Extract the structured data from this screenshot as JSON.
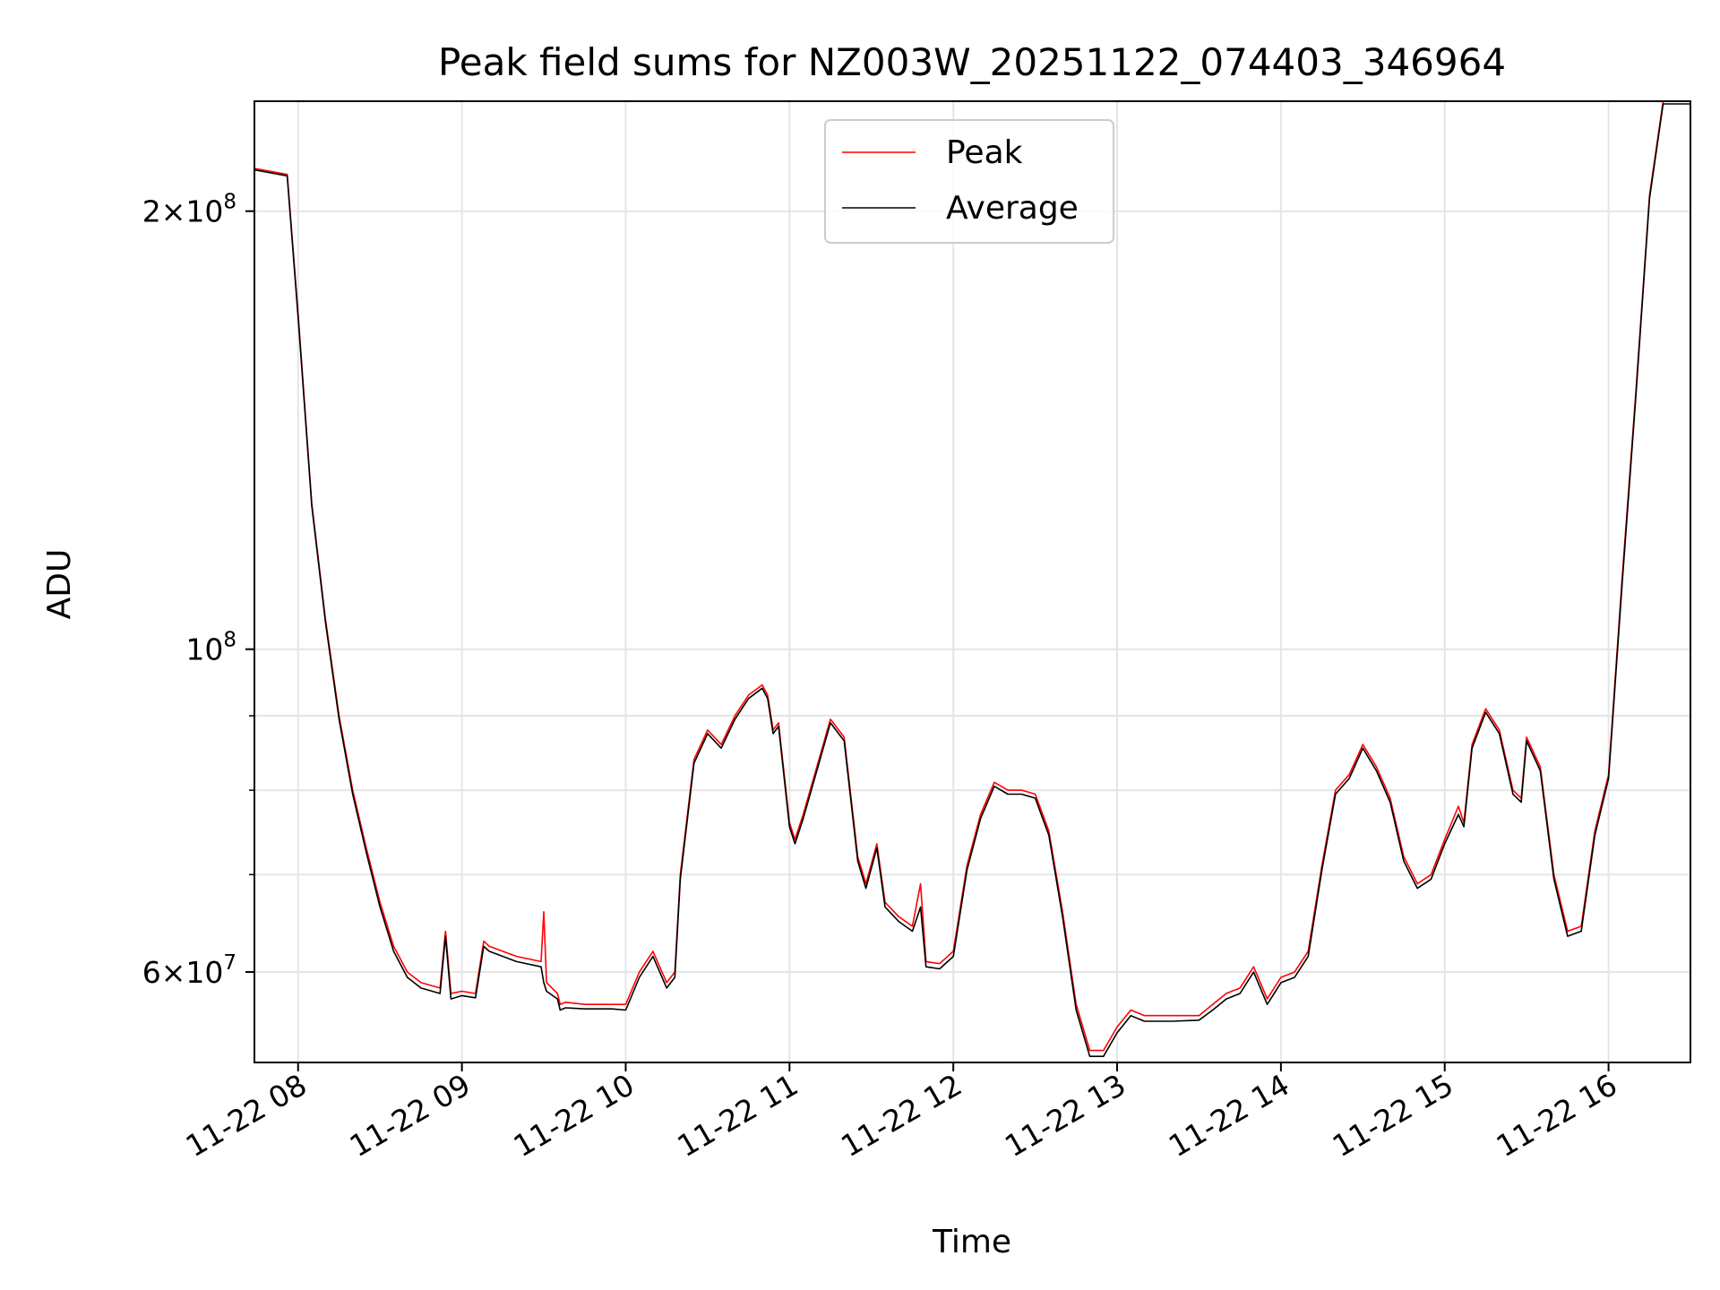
{
  "chart_data": {
    "type": "line",
    "title": "Peak field sums for NZ003W_20251122_074403_346964",
    "xlabel": "Time",
    "ylabel": "ADU",
    "y_scale": "log",
    "grid": true,
    "legend_position": "top-center",
    "xlim": [
      "2025-11-22 07:44",
      "2025-11-22 16:30"
    ],
    "ylim": [
      52000000,
      238000000
    ],
    "x_ticks": [
      {
        "value": "2025-11-22 08:00",
        "label": "11-22 08"
      },
      {
        "value": "2025-11-22 09:00",
        "label": "11-22 09"
      },
      {
        "value": "2025-11-22 10:00",
        "label": "11-22 10"
      },
      {
        "value": "2025-11-22 11:00",
        "label": "11-22 11"
      },
      {
        "value": "2025-11-22 12:00",
        "label": "11-22 12"
      },
      {
        "value": "2025-11-22 13:00",
        "label": "11-22 13"
      },
      {
        "value": "2025-11-22 14:00",
        "label": "11-22 14"
      },
      {
        "value": "2025-11-22 15:00",
        "label": "11-22 15"
      },
      {
        "value": "2025-11-22 16:00",
        "label": "11-22 16"
      }
    ],
    "y_ticks": [
      {
        "value": 60000000,
        "base": "6",
        "exp": "7"
      },
      {
        "value": 100000000,
        "base": "",
        "exp": "8"
      },
      {
        "value": 200000000,
        "base": "2",
        "exp": "8"
      }
    ],
    "y_minor_ticks": [
      70000000,
      80000000,
      90000000
    ],
    "series": [
      {
        "name": "Peak",
        "color": "#ff0000",
        "x": [
          "2025-11-22 07:44",
          "2025-11-22 07:56",
          "2025-11-22 08:00",
          "2025-11-22 08:05",
          "2025-11-22 08:10",
          "2025-11-22 08:15",
          "2025-11-22 08:20",
          "2025-11-22 08:25",
          "2025-11-22 08:30",
          "2025-11-22 08:35",
          "2025-11-22 08:40",
          "2025-11-22 08:45",
          "2025-11-22 08:52",
          "2025-11-22 08:54",
          "2025-11-22 08:56",
          "2025-11-22 09:00",
          "2025-11-22 09:05",
          "2025-11-22 09:08",
          "2025-11-22 09:10",
          "2025-11-22 09:20",
          "2025-11-22 09:29",
          "2025-11-22 09:30",
          "2025-11-22 09:31",
          "2025-11-22 09:35",
          "2025-11-22 09:36",
          "2025-11-22 09:38",
          "2025-11-22 09:45",
          "2025-11-22 09:55",
          "2025-11-22 10:00",
          "2025-11-22 10:05",
          "2025-11-22 10:10",
          "2025-11-22 10:15",
          "2025-11-22 10:18",
          "2025-11-22 10:20",
          "2025-11-22 10:25",
          "2025-11-22 10:30",
          "2025-11-22 10:35",
          "2025-11-22 10:40",
          "2025-11-22 10:45",
          "2025-11-22 10:50",
          "2025-11-22 10:52",
          "2025-11-22 10:54",
          "2025-11-22 10:56",
          "2025-11-22 11:00",
          "2025-11-22 11:02",
          "2025-11-22 11:05",
          "2025-11-22 11:10",
          "2025-11-22 11:15",
          "2025-11-22 11:20",
          "2025-11-22 11:25",
          "2025-11-22 11:28",
          "2025-11-22 11:32",
          "2025-11-22 11:35",
          "2025-11-22 11:40",
          "2025-11-22 11:45",
          "2025-11-22 11:48",
          "2025-11-22 11:50",
          "2025-11-22 11:55",
          "2025-11-22 12:00",
          "2025-11-22 12:05",
          "2025-11-22 12:10",
          "2025-11-22 12:15",
          "2025-11-22 12:20",
          "2025-11-22 12:25",
          "2025-11-22 12:30",
          "2025-11-22 12:35",
          "2025-11-22 12:40",
          "2025-11-22 12:45",
          "2025-11-22 12:50",
          "2025-11-22 12:55",
          "2025-11-22 13:00",
          "2025-11-22 13:05",
          "2025-11-22 13:10",
          "2025-11-22 13:20",
          "2025-11-22 13:30",
          "2025-11-22 13:35",
          "2025-11-22 13:40",
          "2025-11-22 13:45",
          "2025-11-22 13:50",
          "2025-11-22 13:55",
          "2025-11-22 14:00",
          "2025-11-22 14:05",
          "2025-11-22 14:10",
          "2025-11-22 14:15",
          "2025-11-22 14:20",
          "2025-11-22 14:25",
          "2025-11-22 14:30",
          "2025-11-22 14:35",
          "2025-11-22 14:40",
          "2025-11-22 14:45",
          "2025-11-22 14:50",
          "2025-11-22 14:55",
          "2025-11-22 15:00",
          "2025-11-22 15:05",
          "2025-11-22 15:07",
          "2025-11-22 15:10",
          "2025-11-22 15:15",
          "2025-11-22 15:20",
          "2025-11-22 15:25",
          "2025-11-22 15:28",
          "2025-11-22 15:30",
          "2025-11-22 15:35",
          "2025-11-22 15:40",
          "2025-11-22 15:45",
          "2025-11-22 15:50",
          "2025-11-22 15:55",
          "2025-11-22 16:00",
          "2025-11-22 16:05",
          "2025-11-22 16:10",
          "2025-11-22 16:15",
          "2025-11-22 16:20",
          "2025-11-22 16:30"
        ],
        "y": [
          214000000,
          212000000,
          170000000,
          126000000,
          105000000,
          90000000,
          80000000,
          73000000,
          67000000,
          62500000,
          60000000,
          59000000,
          58500000,
          64000000,
          58000000,
          58200000,
          58000000,
          63000000,
          62500000,
          61500000,
          61000000,
          66000000,
          59000000,
          58000000,
          57000000,
          57200000,
          57000000,
          57000000,
          57000000,
          60000000,
          62000000,
          59000000,
          60000000,
          70000000,
          84000000,
          88000000,
          86000000,
          90000000,
          93000000,
          94500000,
          93000000,
          88000000,
          89000000,
          76000000,
          74000000,
          77000000,
          83000000,
          89500000,
          87000000,
          72000000,
          69000000,
          73500000,
          67000000,
          65500000,
          64500000,
          69000000,
          61000000,
          60800000,
          62000000,
          71000000,
          77000000,
          81000000,
          80000000,
          80000000,
          79500000,
          75000000,
          66000000,
          57000000,
          53000000,
          53000000,
          55000000,
          56500000,
          56000000,
          56000000,
          56000000,
          57000000,
          58000000,
          58500000,
          60500000,
          57500000,
          59500000,
          60000000,
          62000000,
          71000000,
          80000000,
          82000000,
          86000000,
          83000000,
          79000000,
          72000000,
          69000000,
          70000000,
          74000000,
          78000000,
          76000000,
          86000000,
          91000000,
          88000000,
          80000000,
          79000000,
          87000000,
          83000000,
          70000000,
          64000000,
          64500000,
          75000000,
          82000000,
          112000000,
          150000000,
          205000000,
          238000000,
          238000000
        ]
      },
      {
        "name": "Average",
        "color": "#000000",
        "x": [
          "2025-11-22 07:44",
          "2025-11-22 07:56",
          "2025-11-22 08:00",
          "2025-11-22 08:05",
          "2025-11-22 08:10",
          "2025-11-22 08:15",
          "2025-11-22 08:20",
          "2025-11-22 08:25",
          "2025-11-22 08:30",
          "2025-11-22 08:35",
          "2025-11-22 08:40",
          "2025-11-22 08:45",
          "2025-11-22 08:52",
          "2025-11-22 08:54",
          "2025-11-22 08:56",
          "2025-11-22 09:00",
          "2025-11-22 09:05",
          "2025-11-22 09:08",
          "2025-11-22 09:10",
          "2025-11-22 09:20",
          "2025-11-22 09:29",
          "2025-11-22 09:30",
          "2025-11-22 09:31",
          "2025-11-22 09:35",
          "2025-11-22 09:36",
          "2025-11-22 09:38",
          "2025-11-22 09:45",
          "2025-11-22 09:55",
          "2025-11-22 10:00",
          "2025-11-22 10:05",
          "2025-11-22 10:10",
          "2025-11-22 10:15",
          "2025-11-22 10:18",
          "2025-11-22 10:20",
          "2025-11-22 10:25",
          "2025-11-22 10:30",
          "2025-11-22 10:35",
          "2025-11-22 10:40",
          "2025-11-22 10:45",
          "2025-11-22 10:50",
          "2025-11-22 10:52",
          "2025-11-22 10:54",
          "2025-11-22 10:56",
          "2025-11-22 11:00",
          "2025-11-22 11:02",
          "2025-11-22 11:05",
          "2025-11-22 11:10",
          "2025-11-22 11:15",
          "2025-11-22 11:20",
          "2025-11-22 11:25",
          "2025-11-22 11:28",
          "2025-11-22 11:32",
          "2025-11-22 11:35",
          "2025-11-22 11:40",
          "2025-11-22 11:45",
          "2025-11-22 11:48",
          "2025-11-22 11:50",
          "2025-11-22 11:55",
          "2025-11-22 12:00",
          "2025-11-22 12:05",
          "2025-11-22 12:10",
          "2025-11-22 12:15",
          "2025-11-22 12:20",
          "2025-11-22 12:25",
          "2025-11-22 12:30",
          "2025-11-22 12:35",
          "2025-11-22 12:40",
          "2025-11-22 12:45",
          "2025-11-22 12:50",
          "2025-11-22 12:55",
          "2025-11-22 13:00",
          "2025-11-22 13:05",
          "2025-11-22 13:10",
          "2025-11-22 13:20",
          "2025-11-22 13:30",
          "2025-11-22 13:35",
          "2025-11-22 13:40",
          "2025-11-22 13:45",
          "2025-11-22 13:50",
          "2025-11-22 13:55",
          "2025-11-22 14:00",
          "2025-11-22 14:05",
          "2025-11-22 14:10",
          "2025-11-22 14:15",
          "2025-11-22 14:20",
          "2025-11-22 14:25",
          "2025-11-22 14:30",
          "2025-11-22 14:35",
          "2025-11-22 14:40",
          "2025-11-22 14:45",
          "2025-11-22 14:50",
          "2025-11-22 14:55",
          "2025-11-22 15:00",
          "2025-11-22 15:05",
          "2025-11-22 15:07",
          "2025-11-22 15:10",
          "2025-11-22 15:15",
          "2025-11-22 15:20",
          "2025-11-22 15:25",
          "2025-11-22 15:28",
          "2025-11-22 15:30",
          "2025-11-22 15:35",
          "2025-11-22 15:40",
          "2025-11-22 15:45",
          "2025-11-22 15:50",
          "2025-11-22 15:55",
          "2025-11-22 16:00",
          "2025-11-22 16:05",
          "2025-11-22 16:10",
          "2025-11-22 16:15",
          "2025-11-22 16:20",
          "2025-11-22 16:30"
        ],
        "y": [
          213500000,
          211500000,
          169000000,
          125500000,
          104500000,
          89500000,
          79500000,
          72500000,
          66500000,
          62000000,
          59500000,
          58500000,
          58000000,
          63500000,
          57500000,
          57800000,
          57600000,
          62500000,
          62000000,
          61000000,
          60500000,
          59000000,
          58200000,
          57500000,
          56500000,
          56700000,
          56600000,
          56600000,
          56500000,
          59500000,
          61500000,
          58500000,
          59500000,
          69500000,
          83500000,
          87500000,
          85500000,
          89500000,
          92500000,
          94000000,
          92500000,
          87500000,
          88500000,
          75500000,
          73500000,
          76500000,
          82500000,
          89000000,
          86500000,
          71500000,
          68500000,
          73000000,
          66500000,
          65000000,
          64000000,
          66500000,
          60500000,
          60300000,
          61500000,
          70500000,
          76500000,
          80500000,
          79500000,
          79500000,
          79000000,
          74500000,
          65500000,
          56500000,
          52500000,
          52500000,
          54500000,
          56000000,
          55500000,
          55500000,
          55600000,
          56500000,
          57500000,
          58000000,
          60000000,
          57000000,
          59000000,
          59500000,
          61500000,
          70500000,
          79500000,
          81500000,
          85500000,
          82500000,
          78500000,
          71500000,
          68500000,
          69500000,
          73500000,
          77000000,
          75500000,
          85500000,
          90500000,
          87500000,
          79500000,
          78500000,
          86500000,
          82500000,
          69500000,
          63500000,
          64000000,
          74500000,
          81500000,
          111000000,
          149000000,
          204000000,
          237000000,
          237000000
        ]
      }
    ]
  }
}
